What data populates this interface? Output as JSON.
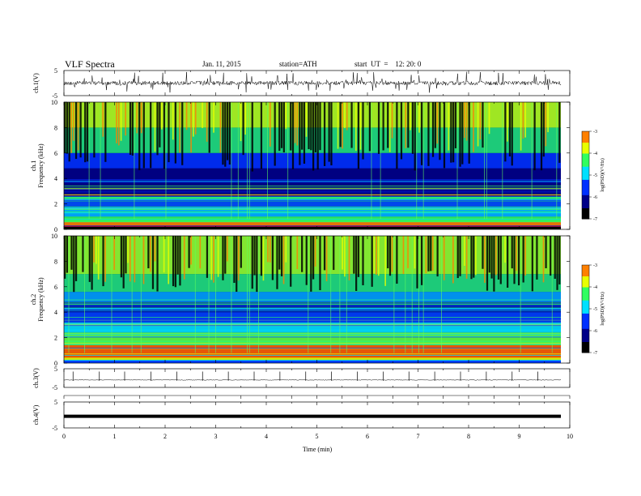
{
  "header": {
    "title": "VLF  Spectra",
    "date": "Jan. 11, 2015",
    "station": "station=ATH",
    "start": "start  UT  =    12: 20: 0"
  },
  "chart_data": [
    {
      "type": "line",
      "ylabel": "ch.1(V)",
      "ylim": [
        -5,
        5
      ],
      "yticks": [
        "5",
        "-5"
      ],
      "description_note": "noisy waveform with frequent spikes around 0 V"
    },
    {
      "type": "heatmap",
      "ylabel_lines": [
        "ch.1",
        "Frequency  (kHz)"
      ],
      "ylim": [
        0,
        10
      ],
      "yticks": [
        "0",
        "2",
        "4",
        "6",
        "8",
        "10"
      ],
      "colorbar": {
        "label": "log(PSD)(V²/Hz)",
        "range": [
          -7,
          -3
        ],
        "ticks": [
          "-7",
          "-6",
          "-5",
          "-4",
          "-3"
        ]
      }
    },
    {
      "type": "heatmap",
      "ylabel_lines": [
        "ch.2",
        "Frequency  (kHz)"
      ],
      "ylim": [
        0,
        10
      ],
      "yticks": [
        "0",
        "2",
        "4",
        "6",
        "8",
        "10"
      ],
      "colorbar": {
        "label": "log(PSD)(V²/Hz)",
        "range": [
          -7,
          -3
        ],
        "ticks": [
          "-7",
          "-6",
          "-5",
          "-4",
          "-3"
        ]
      }
    },
    {
      "type": "line",
      "ylabel": "ch.3(V)",
      "ylim": [
        -5,
        5
      ],
      "yticks": [
        "5",
        "-5"
      ],
      "spike_times_min": [
        0.18,
        0.7,
        1.2,
        1.72,
        2.23,
        2.74,
        3.25,
        3.76,
        4.27,
        4.78,
        5.29,
        5.8,
        6.31,
        6.82,
        7.33,
        7.84,
        8.35,
        8.86,
        9.37
      ]
    },
    {
      "type": "line",
      "ylabel": "ch.4(V)",
      "ylim": [
        -5,
        5
      ],
      "yticks": [
        "5",
        "-5"
      ],
      "level_V": -0.5
    }
  ],
  "xaxis": {
    "label": "Time  (min)",
    "range": [
      0,
      10
    ],
    "ticks": [
      "0",
      "1",
      "2",
      "3",
      "4",
      "5",
      "6",
      "7",
      "8",
      "9",
      "10"
    ]
  }
}
